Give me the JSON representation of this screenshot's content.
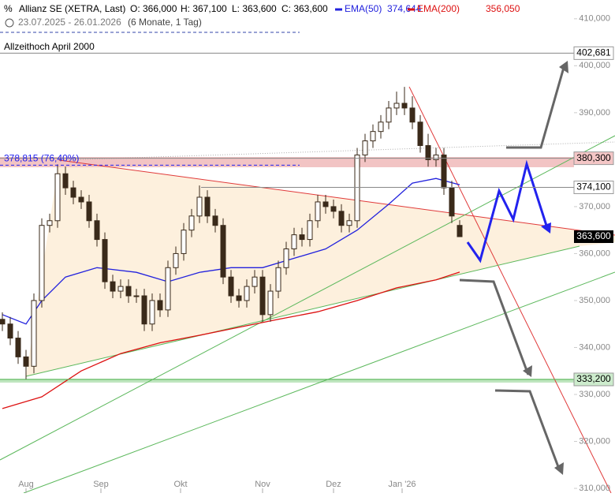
{
  "chart_data": {
    "type": "candlestick",
    "title": "Allianz SE (XETRA, Last)",
    "ohlc_labels": [
      "O: 366,000",
      "H: 367,100",
      "L: 363,600",
      "C: 363,600"
    ],
    "period": "23.07.2025 - 26.01.2026",
    "interval": "(6 Monate, 1 Tag)",
    "annotation": "Allzeithoch April 2000",
    "xlim": [
      -0.3,
      77.7
    ],
    "ylim": [
      309,
      414
    ],
    "xticks": [
      {
        "value": 3,
        "label": "Aug"
      },
      {
        "value": 12.5,
        "label": "Sep"
      },
      {
        "value": 22.6,
        "label": "Okt"
      },
      {
        "value": 33,
        "label": "Nov"
      },
      {
        "value": 42,
        "label": "Dez"
      },
      {
        "value": 50.7,
        "label": "Jan '26"
      }
    ],
    "yticks": [
      {
        "value": 310,
        "label": "310,000"
      },
      {
        "value": 320,
        "label": "320,000"
      },
      {
        "value": 330,
        "label": "330,000"
      },
      {
        "value": 340,
        "label": "340,000"
      },
      {
        "value": 350,
        "label": "350,000"
      },
      {
        "value": 360,
        "label": "360,000"
      },
      {
        "value": 370,
        "label": "370,000"
      },
      {
        "value": 380,
        "label": "380,000"
      },
      {
        "value": 390,
        "label": "390,000"
      },
      {
        "value": 400,
        "label": "400,000"
      },
      {
        "value": 410,
        "label": "410,000"
      }
    ],
    "open": [
      346,
      345,
      342,
      338,
      336,
      350,
      366,
      367,
      377,
      374,
      372,
      371,
      367,
      363,
      354,
      352,
      353,
      351,
      351,
      345,
      350,
      348,
      357,
      360,
      365,
      368,
      372,
      368,
      366,
      355,
      351,
      350,
      353,
      355,
      347,
      352,
      357,
      361,
      364,
      363,
      367,
      371,
      370,
      369,
      366,
      367,
      381,
      384,
      386,
      388,
      391,
      392,
      391,
      388,
      383,
      380,
      381,
      374,
      366
    ],
    "high": [
      347.5,
      346.5,
      343.5,
      339.5,
      351.5,
      367.5,
      368.5,
      379,
      378.5,
      375.5,
      373.5,
      372.5,
      368.5,
      364.5,
      355.5,
      354.5,
      354.5,
      352.5,
      352.5,
      351.5,
      351.5,
      358.5,
      361.5,
      366.5,
      369.5,
      374.5,
      373.5,
      369.5,
      367.5,
      356.5,
      352.5,
      354.5,
      356.5,
      356.5,
      353.5,
      358.5,
      362.5,
      365.5,
      365.5,
      368.5,
      372.5,
      372.5,
      371.5,
      370.5,
      368.5,
      382.5,
      385.5,
      387.5,
      389.5,
      392.5,
      394.5,
      395.5,
      393.5,
      389.5,
      385.5,
      382.5,
      382.5,
      375.5,
      367.1
    ],
    "low": [
      343.5,
      340.5,
      336.5,
      333.2,
      334.5,
      348.5,
      364.5,
      365.5,
      372.5,
      370.5,
      369.5,
      365.5,
      361.5,
      352.5,
      350.5,
      350.5,
      349.5,
      349.5,
      343.5,
      343.5,
      346.5,
      346.5,
      355.5,
      358.5,
      363.5,
      366.5,
      366.5,
      364.5,
      353.5,
      349.5,
      348.5,
      348.5,
      351.5,
      345.5,
      345.5,
      350.5,
      355.5,
      359.5,
      361.5,
      361.5,
      365.5,
      368.5,
      367.5,
      364.5,
      364.5,
      365.5,
      379.5,
      382.5,
      384.5,
      386.5,
      389.5,
      389.5,
      386.5,
      381.5,
      378.5,
      378.5,
      372.5,
      366.5,
      363.6
    ],
    "close": [
      345,
      342,
      338,
      336,
      350,
      366,
      367,
      377,
      374,
      372,
      371,
      367,
      363,
      354,
      352,
      353,
      351,
      351,
      345,
      350,
      348,
      357,
      360,
      365,
      368,
      372,
      368,
      366,
      355,
      351,
      350,
      353,
      355,
      347,
      352,
      357,
      361,
      364,
      363,
      367,
      371,
      370,
      369,
      366,
      367,
      381,
      384,
      386,
      388,
      391,
      392,
      391,
      388,
      383,
      380,
      381,
      374,
      368,
      363.6
    ],
    "series": [
      {
        "name": "EMA(50)",
        "color": "#2222dd",
        "value_label": "374,644",
        "x": [
          0,
          3,
          5,
          8,
          12,
          17,
          21,
          25,
          29,
          33,
          37,
          41,
          45,
          49,
          52,
          55,
          58
        ],
        "values": [
          347,
          345,
          350,
          355,
          357,
          356,
          354,
          356,
          357,
          357,
          359,
          361,
          365,
          370.5,
          375,
          376,
          374.644
        ]
      },
      {
        "name": "EMA(200)",
        "color": "#dd1111",
        "value_label": "356,050",
        "x": [
          0,
          5,
          10,
          15,
          20,
          25,
          30,
          35,
          40,
          45,
          50,
          55,
          58
        ],
        "values": [
          327,
          329.5,
          335,
          338.7,
          341,
          342.6,
          344.3,
          346,
          347.6,
          350,
          352.7,
          354.4,
          356.05
        ]
      }
    ],
    "levels": [
      {
        "value": 402.681,
        "label": "402,681",
        "color": "#ffffff"
      },
      {
        "value": 380.3,
        "label": "380,300",
        "color": "#f4c6c6"
      },
      {
        "value": 374.1,
        "label": "374,100",
        "color": "#ffffff"
      },
      {
        "value": 333.2,
        "label": "333,200",
        "color": "#cdeccd"
      }
    ],
    "fib_level": {
      "value": 378.815,
      "label": "378,815 (76,40%)"
    },
    "last_price": {
      "value": 363.6,
      "label": "363,600"
    }
  }
}
